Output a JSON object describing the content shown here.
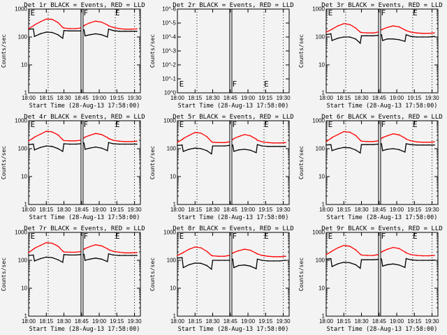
{
  "chart_data": {
    "type": "line",
    "xlabel": "Start Time (28-Aug-13 17:58:00)",
    "ylabel": "Counts/sec",
    "x_tick_labels": [
      "18:00",
      "18:15",
      "18:30",
      "18:45",
      "19:00",
      "19:15",
      "19:30"
    ],
    "x_tick_minutes": [
      0,
      15,
      30,
      45,
      60,
      75,
      90
    ],
    "xlim_minutes": [
      0,
      95
    ],
    "dotted_lines_minutes": [
      16.6,
      73.6,
      90
    ],
    "gap_lines_minutes": [
      44.5,
      46.3
    ],
    "annotations": [
      {
        "text": "E",
        "minute": 1
      },
      {
        "text": "F",
        "minute": 46
      },
      {
        "text": "E",
        "minute": 73
      }
    ],
    "times_minutes": [
      0,
      4,
      5,
      10,
      15,
      20,
      25,
      29,
      30,
      35,
      40,
      44,
      47,
      48,
      52,
      57,
      62,
      67,
      68,
      72,
      77,
      82,
      87,
      92
    ],
    "colors": {
      "black": "#000000",
      "red": "#ff0000"
    },
    "panels": [
      {
        "title": "Det 1r BLACK = Events, RED = LLD",
        "ylim": [
          1,
          1000
        ],
        "y_tick_labels": [
          "1",
          "10",
          "100",
          "1000"
        ],
        "series": [
          {
            "name": "Events",
            "color": "black",
            "values": [
              190,
              195,
              105,
              130,
              150,
              145,
              120,
              90,
              170,
              165,
              165,
              165,
              180,
              110,
              120,
              130,
              120,
              100,
              190,
              170,
              160,
              160,
              160,
              160
            ]
          },
          {
            "name": "LLD",
            "color": "red",
            "values": [
              200,
              250,
              270,
              350,
              440,
              430,
              330,
              220,
              210,
              200,
              200,
              210,
              250,
              270,
              320,
              370,
              340,
              270,
              250,
              220,
              200,
              190,
              190,
              195
            ]
          }
        ]
      },
      {
        "title": "Det 2r BLACK = Events, RED = LLD",
        "ylim": [
          1e-06,
          1
        ],
        "y_tick_labels": [
          "10^0",
          "10^-1",
          "10^-2",
          "10^-3",
          "10^-4",
          "10^-5",
          "10^-6"
        ],
        "empty": true,
        "series": []
      },
      {
        "title": "Det 3r BLACK = Events, RED = LLD",
        "ylim": [
          1,
          1000
        ],
        "y_tick_labels": [
          "1",
          "10",
          "100",
          "1000"
        ],
        "series": [
          {
            "name": "Events",
            "color": "black",
            "values": [
              120,
              130,
              75,
              90,
              100,
              100,
              85,
              60,
              110,
              110,
              110,
              115,
              120,
              75,
              85,
              85,
              80,
              70,
              120,
              105,
              100,
              100,
              100,
              105
            ]
          },
          {
            "name": "LLD",
            "color": "red",
            "values": [
              150,
              180,
              190,
              250,
              300,
              280,
              210,
              150,
              145,
              140,
              140,
              150,
              180,
              190,
              220,
              250,
              230,
              180,
              170,
              150,
              140,
              135,
              135,
              140
            ]
          }
        ]
      },
      {
        "title": "Det 4r BLACK = Events, RED = LLD",
        "ylim": [
          1,
          1000
        ],
        "y_tick_labels": [
          "1",
          "10",
          "100",
          "1000"
        ],
        "series": [
          {
            "name": "Events",
            "color": "black",
            "values": [
              140,
              145,
              90,
              110,
              125,
              120,
              100,
              80,
              150,
              145,
              145,
              150,
              160,
              95,
              105,
              115,
              105,
              85,
              165,
              150,
              145,
              145,
              145,
              145
            ]
          },
          {
            "name": "LLD",
            "color": "red",
            "values": [
              190,
              240,
              260,
              330,
              420,
              400,
              310,
              210,
              195,
              190,
              190,
              200,
              240,
              260,
              300,
              350,
              320,
              250,
              230,
              200,
              185,
              180,
              180,
              185
            ]
          }
        ]
      },
      {
        "title": "Det 5r BLACK = Events, RED = LLD",
        "ylim": [
          1,
          1000
        ],
        "y_tick_labels": [
          "1",
          "10",
          "100",
          "1000"
        ],
        "series": [
          {
            "name": "Events",
            "color": "black",
            "values": [
              130,
              135,
              80,
              95,
              105,
              100,
              85,
              65,
              125,
              125,
              125,
              130,
              135,
              80,
              90,
              95,
              88,
              72,
              140,
              125,
              120,
              120,
              120,
              120
            ]
          },
          {
            "name": "LLD",
            "color": "red",
            "values": [
              170,
              210,
              230,
              300,
              380,
              360,
              270,
              180,
              170,
              165,
              165,
              175,
              210,
              230,
              270,
              320,
              290,
              220,
              200,
              175,
              165,
              160,
              160,
              165
            ]
          }
        ]
      },
      {
        "title": "Det 6r BLACK = Events, RED = LLD",
        "ylim": [
          1,
          1000
        ],
        "y_tick_labels": [
          "1",
          "10",
          "100",
          "1000"
        ],
        "series": [
          {
            "name": "Events",
            "color": "black",
            "values": [
              135,
              140,
              85,
              100,
              110,
              108,
              90,
              70,
              140,
              140,
              140,
              145,
              150,
              85,
              95,
              100,
              92,
              76,
              150,
              140,
              135,
              135,
              135,
              135
            ]
          },
          {
            "name": "LLD",
            "color": "red",
            "values": [
              180,
              230,
              250,
              320,
              410,
              390,
              300,
              200,
              185,
              180,
              180,
              190,
              230,
              250,
              290,
              340,
              310,
              240,
              220,
              190,
              175,
              170,
              170,
              175
            ]
          }
        ]
      },
      {
        "title": "Det 7r BLACK = Events, RED = LLD",
        "ylim": [
          1,
          1000
        ],
        "y_tick_labels": [
          "1",
          "10",
          "100",
          "1000"
        ],
        "series": [
          {
            "name": "Events",
            "color": "black",
            "values": [
              150,
              155,
              95,
              115,
              130,
              125,
              105,
              85,
              160,
              155,
              155,
              160,
              165,
              100,
              110,
              120,
              110,
              90,
              170,
              155,
              150,
              150,
              150,
              150
            ]
          },
          {
            "name": "LLD",
            "color": "red",
            "values": [
              190,
              250,
              270,
              340,
              430,
              410,
              320,
              215,
              200,
              195,
              195,
              205,
              245,
              265,
              310,
              360,
              330,
              260,
              240,
              210,
              195,
              185,
              185,
              190
            ]
          }
        ]
      },
      {
        "title": "Det 8r BLACK = Events, RED = LLD",
        "ylim": [
          1,
          1000
        ],
        "y_tick_labels": [
          "1",
          "10",
          "100",
          "1000"
        ],
        "series": [
          {
            "name": "Events",
            "color": "black",
            "values": [
              120,
              125,
              55,
              70,
              80,
              78,
              65,
              48,
              100,
              100,
              100,
              100,
              110,
              55,
              65,
              68,
              62,
              50,
              110,
              100,
              95,
              95,
              95,
              100
            ]
          },
          {
            "name": "LLD",
            "color": "red",
            "values": [
              150,
              180,
              190,
              250,
              300,
              280,
              210,
              150,
              145,
              140,
              140,
              150,
              180,
              190,
              220,
              250,
              230,
              180,
              170,
              150,
              140,
              135,
              135,
              140
            ]
          }
        ]
      },
      {
        "title": "Det 9r BLACK = Events, RED = LLD",
        "ylim": [
          1,
          1000
        ],
        "y_tick_labels": [
          "1",
          "10",
          "100",
          "1000"
        ],
        "series": [
          {
            "name": "Events",
            "color": "black",
            "values": [
              110,
              115,
              60,
              75,
              85,
              82,
              70,
              52,
              105,
              105,
              105,
              108,
              112,
              62,
              70,
              74,
              68,
              56,
              115,
              105,
              100,
              100,
              100,
              102
            ]
          },
          {
            "name": "LLD",
            "color": "red",
            "values": [
              160,
              200,
              215,
              280,
              340,
              320,
              240,
              165,
              155,
              150,
              150,
              160,
              195,
              210,
              250,
              290,
              265,
              200,
              185,
              160,
              150,
              145,
              145,
              150
            ]
          }
        ]
      }
    ]
  }
}
